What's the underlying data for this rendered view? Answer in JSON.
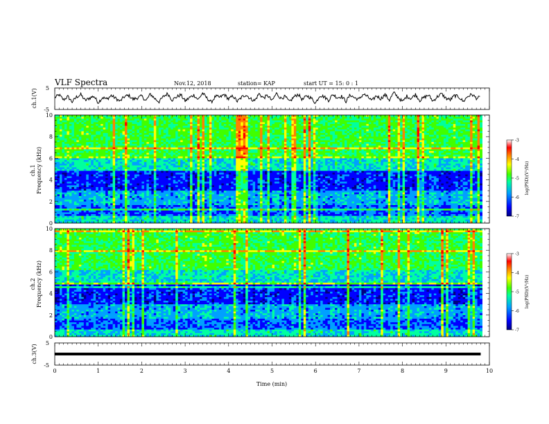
{
  "header": {
    "title": "VLF Spectra",
    "date": "Nov.12, 2018",
    "station": "station= KAP",
    "start": "start  UT =   15: 0  : 1"
  },
  "chart_data": [
    {
      "type": "line",
      "ylabel": "ch.1(V)",
      "ylim": [
        -5,
        5
      ],
      "yticks": [
        "5",
        "-5"
      ],
      "xlim": [
        0,
        10
      ],
      "series": [
        {
          "x": [
            0,
            0.1,
            0.2,
            0.3,
            0.4,
            0.5,
            0.6,
            0.7,
            0.8,
            0.9,
            1.0,
            1.1,
            1.2,
            1.3,
            1.4,
            1.5,
            1.6,
            1.7,
            1.8,
            1.9,
            2.0,
            2.1,
            2.2,
            2.3,
            2.4,
            2.5,
            2.6,
            2.7,
            2.8,
            2.9,
            3.0,
            3.1,
            3.2,
            3.3,
            3.4,
            3.5,
            3.6,
            3.7,
            3.8,
            3.9,
            4.0,
            4.1,
            4.2,
            4.3,
            4.4,
            4.5,
            4.6,
            4.7,
            4.8,
            4.9,
            5.0,
            5.1,
            5.2,
            5.3,
            5.4,
            5.5,
            5.6,
            5.7,
            5.8,
            5.9,
            6.0,
            6.1,
            6.2,
            6.3,
            6.4,
            6.5,
            6.6,
            6.7,
            6.8,
            6.9,
            7.0,
            7.1,
            7.2,
            7.3,
            7.4,
            7.5,
            7.6,
            7.7,
            7.8,
            7.9,
            8.0,
            8.1,
            8.2,
            8.3,
            8.4,
            8.5,
            8.6,
            8.7,
            8.8,
            8.9,
            9.0,
            9.1,
            9.2,
            9.3,
            9.4,
            9.5,
            9.6,
            9.7,
            9.8
          ],
          "y": [
            0.5,
            1.8,
            -0.5,
            1.0,
            -1.5,
            0.8,
            1.9,
            -0.8,
            0.3,
            1.2,
            -1.8,
            0.6,
            -0.2,
            1.5,
            0.2,
            -1.2,
            0.9,
            1.6,
            -0.3,
            0.4,
            1.2,
            -0.9,
            2.2,
            0.1,
            -1.4,
            1.0,
            2.4,
            -0.6,
            0.8,
            1.8,
            -1.1,
            0.5,
            1.7,
            -0.4,
            2.6,
            0.3,
            -1.6,
            1.1,
            0.6,
            2.0,
            -0.2,
            1.3,
            -1.3,
            0.7,
            1.9,
            0.0,
            -0.9,
            2.3,
            0.4,
            1.5,
            -1.0,
            2.5,
            0.2,
            1.0,
            -1.5,
            0.8,
            2.1,
            -0.5,
            1.4,
            0.3,
            -2.0,
            1.6,
            0.9,
            -0.7,
            2.0,
            0.5,
            1.1,
            -1.2,
            1.8,
            0.4,
            -0.3,
            2.2,
            0.9,
            -1.0,
            1.4,
            0.0,
            1.9,
            -0.6,
            2.8,
            0.7,
            -1.4,
            1.2,
            0.1,
            2.0,
            -0.8,
            0.6,
            1.7,
            -1.1,
            0.9,
            2.3,
            0.2,
            -0.5,
            1.5,
            0.8,
            -1.3,
            1.1,
            2.0,
            0.3,
            0.6
          ]
        }
      ]
    },
    {
      "type": "heatmap",
      "ylabel": "ch.1\nFrequency (kHz)",
      "ylim": [
        0,
        10
      ],
      "yticks": [
        "0",
        "2",
        "4",
        "6",
        "8",
        "10"
      ],
      "xlim": [
        0,
        10
      ],
      "colorbar": {
        "label": "log(PSD)(V²/Hz)",
        "range": [
          -7,
          -3
        ],
        "ticks": [
          "-3",
          "-4",
          "-5",
          "-6",
          "-7"
        ]
      }
    },
    {
      "type": "heatmap",
      "ylabel": "ch.2\nFrequency (kHz)",
      "ylim": [
        0,
        10
      ],
      "yticks": [
        "0",
        "2",
        "4",
        "6",
        "8",
        "10"
      ],
      "xlim": [
        0,
        10
      ],
      "colorbar": {
        "label": "log(PSD)(V²/Hz)",
        "range": [
          -7,
          -3
        ],
        "ticks": [
          "-3",
          "-4",
          "-5",
          "-6",
          "-7"
        ]
      }
    },
    {
      "type": "line",
      "ylabel": "ch.3(V)",
      "ylim": [
        -5,
        5
      ],
      "yticks": [
        "5",
        "-5"
      ],
      "xlim": [
        0,
        10
      ],
      "xlabel": "Time  (min)",
      "xticks": [
        "0",
        "1",
        "2",
        "3",
        "4",
        "5",
        "6",
        "7",
        "8",
        "9",
        "10"
      ],
      "series": [
        {
          "x": [
            0,
            9.8
          ],
          "y": [
            0,
            0
          ]
        }
      ]
    }
  ],
  "colors": {
    "axis": "#000000",
    "trace": "#000000",
    "colormap": [
      "#000080",
      "#0000ff",
      "#00a0ff",
      "#00ffa0",
      "#40ff00",
      "#ffff00",
      "#ff8000",
      "#ff0000",
      "#ffffff"
    ]
  }
}
